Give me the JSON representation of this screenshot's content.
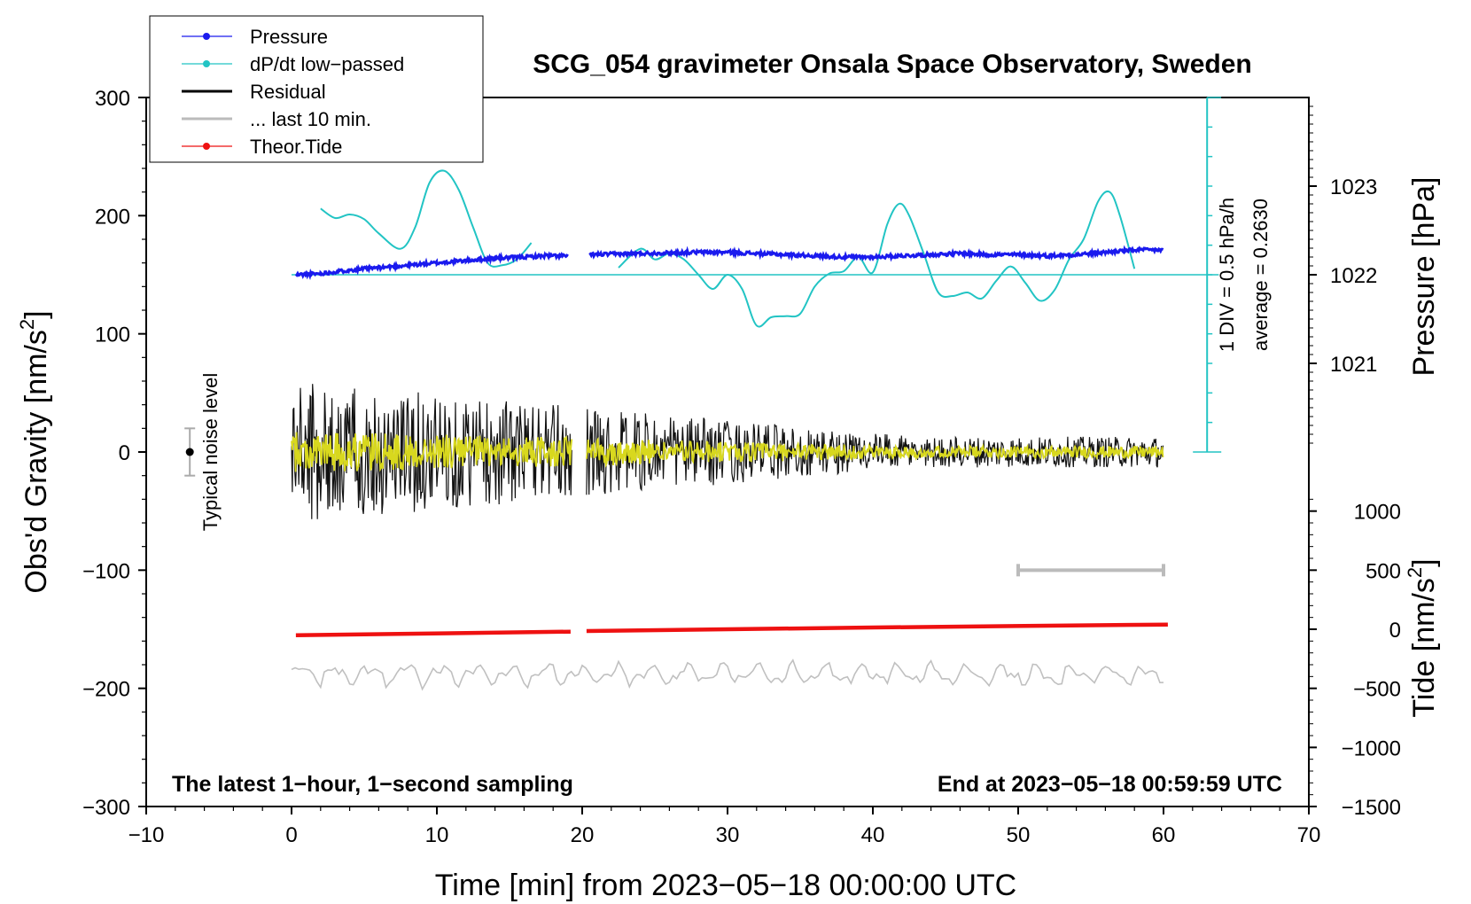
{
  "chart_data": {
    "type": "line",
    "title": "SCG_054 gravimeter Onsala Space Observatory, Sweden",
    "xlabel": "Time [min] from 2023−05−18 00:00:00 UTC",
    "ylabel": "Obs'd Gravity [nm/s",
    "ylabel_sup": "2",
    "ylabel_close": "]",
    "xlim": [
      -10,
      70
    ],
    "ylim": [
      -300,
      300
    ],
    "x_ticks": [
      -10,
      0,
      10,
      20,
      30,
      40,
      50,
      60,
      70
    ],
    "x_tick_labels": [
      "−10",
      "0",
      "10",
      "20",
      "30",
      "40",
      "50",
      "60",
      "70"
    ],
    "y_ticks": [
      -300,
      -200,
      -100,
      0,
      100,
      200,
      300
    ],
    "y_tick_labels": [
      "−300",
      "−200",
      "−100",
      "0",
      "100",
      "200",
      "300"
    ],
    "pressure_axis": {
      "label": "Pressure [hPa]",
      "ticks": [
        1021,
        1022,
        1023
      ],
      "tick_labels": [
        "1021",
        "1022",
        "1023"
      ],
      "gravity_at_1022": 150,
      "gravity_per_hPa": 75
    },
    "tide_axis": {
      "label": "Tide [nm/s",
      "label_sup": "2",
      "label_close": "]",
      "ticks": [
        -1500,
        -1000,
        -500,
        0,
        500,
        1000
      ],
      "tick_labels": [
        "−1500",
        "−1000",
        "−500",
        "0",
        "500",
        "1000"
      ],
      "gravity_at_zero": -150,
      "gravity_per_unit": 0.1
    },
    "legend": [
      {
        "label": "Pressure",
        "color": "#1a1aee",
        "style": "line-dot"
      },
      {
        "label": "dP/dt low−passed",
        "color": "#22c4c4",
        "style": "line-dot"
      },
      {
        "label": "Residual",
        "color": "#000000",
        "style": "line"
      },
      {
        "label": "... last 10 min.",
        "color": "#bbbbbb",
        "style": "line"
      },
      {
        "label": "Theor.Tide",
        "color": "#ee1111",
        "style": "line-dot"
      }
    ],
    "dpdt_scale": {
      "label_div": "1 DIV = 0.5 hPa/h",
      "label_avg": "average = 0.2630",
      "x": 63,
      "top": 300,
      "bottom": 0,
      "baseline": 150,
      "divisions": 12
    },
    "noise_level": {
      "label": "Typical noise level",
      "x": -7,
      "center": 0,
      "half_range": 20
    },
    "last10_bar": {
      "x_start": 50,
      "x_end": 60,
      "y": -100
    },
    "annotations": {
      "left": "The latest 1−hour, 1−second sampling",
      "right": "End at 2023−05−18 00:59:59 UTC"
    },
    "series": [
      {
        "name": "Pressure",
        "color": "#1a1aee",
        "segments": [
          [
            [
              0.3,
              150
            ],
            [
              2,
              151
            ],
            [
              4,
              154
            ],
            [
              6,
              156
            ],
            [
              8,
              158
            ],
            [
              10,
              160
            ],
            [
              12,
              162
            ],
            [
              14,
              164
            ],
            [
              16,
              165
            ],
            [
              17.5,
              166
            ],
            [
              19,
              166
            ]
          ],
          [
            [
              20.5,
              167
            ],
            [
              24,
              168
            ],
            [
              28,
              169
            ],
            [
              30,
              169
            ],
            [
              32,
              168
            ],
            [
              34,
              167
            ],
            [
              36,
              166
            ],
            [
              38,
              165
            ],
            [
              40,
              165
            ],
            [
              42,
              166
            ],
            [
              44,
              167
            ],
            [
              46,
              168
            ],
            [
              48,
              167
            ],
            [
              50,
              167
            ],
            [
              52,
              166
            ],
            [
              54,
              167
            ],
            [
              56,
              169
            ],
            [
              58,
              171
            ],
            [
              60,
              171
            ]
          ]
        ]
      },
      {
        "name": "dP/dt low-passed",
        "color": "#22c4c4",
        "segments": [
          [
            [
              2,
              206
            ],
            [
              3,
              198
            ],
            [
              4,
              201
            ],
            [
              5,
              197
            ],
            [
              6,
              185
            ],
            [
              7.5,
              172
            ],
            [
              8.5,
              190
            ],
            [
              9.5,
              228
            ],
            [
              10.5,
              238
            ],
            [
              11.5,
              222
            ],
            [
              12.5,
              190
            ],
            [
              13.5,
              160
            ],
            [
              14.5,
              158
            ],
            [
              15.5,
              163
            ],
            [
              16.5,
              177
            ]
          ],
          [
            [
              22.5,
              156
            ],
            [
              24,
              172
            ],
            [
              25,
              163
            ],
            [
              26,
              168
            ],
            [
              27,
              163
            ],
            [
              28,
              150
            ],
            [
              29,
              138
            ],
            [
              30,
              150
            ],
            [
              31,
              138
            ],
            [
              32,
              107
            ],
            [
              33,
              114
            ],
            [
              34,
              115
            ],
            [
              35,
              117
            ],
            [
              36,
              140
            ],
            [
              37,
              151
            ],
            [
              38,
              153
            ],
            [
              39,
              165
            ],
            [
              40,
              152
            ],
            [
              41,
              193
            ],
            [
              41.8,
              210
            ],
            [
              42.5,
              200
            ],
            [
              43.5,
              168
            ],
            [
              44.5,
              135
            ],
            [
              45.5,
              132
            ],
            [
              46.5,
              135
            ],
            [
              47.5,
              130
            ],
            [
              48.5,
              145
            ],
            [
              49.5,
              157
            ],
            [
              50.5,
              143
            ],
            [
              51.5,
              128
            ],
            [
              52.5,
              137
            ],
            [
              53.5,
              163
            ],
            [
              54.5,
              180
            ],
            [
              55.5,
              212
            ],
            [
              56.3,
              220
            ],
            [
              57,
              200
            ],
            [
              58,
              155
            ]
          ]
        ]
      },
      {
        "name": "Theor.Tide",
        "color": "#ee1111",
        "segments": [
          [
            [
              0.3,
              -155
            ],
            [
              19.2,
              -152
            ]
          ],
          [
            [
              20.3,
              -151.5
            ],
            [
              40,
              -148.5
            ],
            [
              60.3,
              -146
            ]
          ]
        ]
      }
    ],
    "residual": {
      "color": "#111111",
      "segments": [
        [
          0,
          19.3
        ],
        [
          20.3,
          60
        ]
      ],
      "amplitude_start": 60,
      "amplitude_end": 13,
      "samples_per_min": 18
    },
    "smoothed": {
      "color": "#d8d81e",
      "amplitude_start": 18,
      "amplitude_end": 5
    },
    "lowpass_gray": {
      "color": "#c0c0c0",
      "x_range": [
        0,
        60
      ],
      "baseline": -188,
      "amplitude": 10
    }
  }
}
